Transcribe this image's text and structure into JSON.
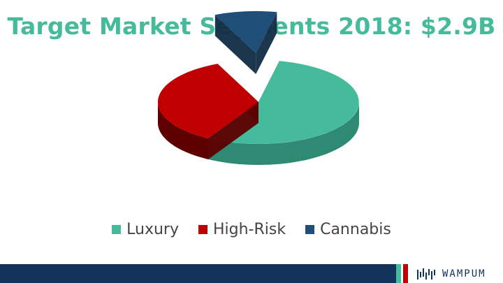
{
  "chart_data": {
    "type": "pie",
    "title": "Target Market Segments 2018: $2.9B",
    "slices": [
      {
        "label": "Luxury",
        "value": 55,
        "color": "#45bb9c",
        "side_color": "#2f8a73",
        "exploded": false
      },
      {
        "label": "High-Risk",
        "value": 35,
        "color": "#c00000",
        "side_color": "#5e0000",
        "exploded": false
      },
      {
        "label": "Cannabis",
        "value": 10,
        "color": "#1f4e79",
        "side_color": "#102b45",
        "exploded": true
      }
    ],
    "legend_position": "bottom",
    "three_d": true
  },
  "branding": {
    "logo_text": "WAMPUM",
    "stripe_colors": [
      "#45bb9c",
      "#ffffff",
      "#c00000"
    ],
    "bar_color": "#12345a"
  }
}
